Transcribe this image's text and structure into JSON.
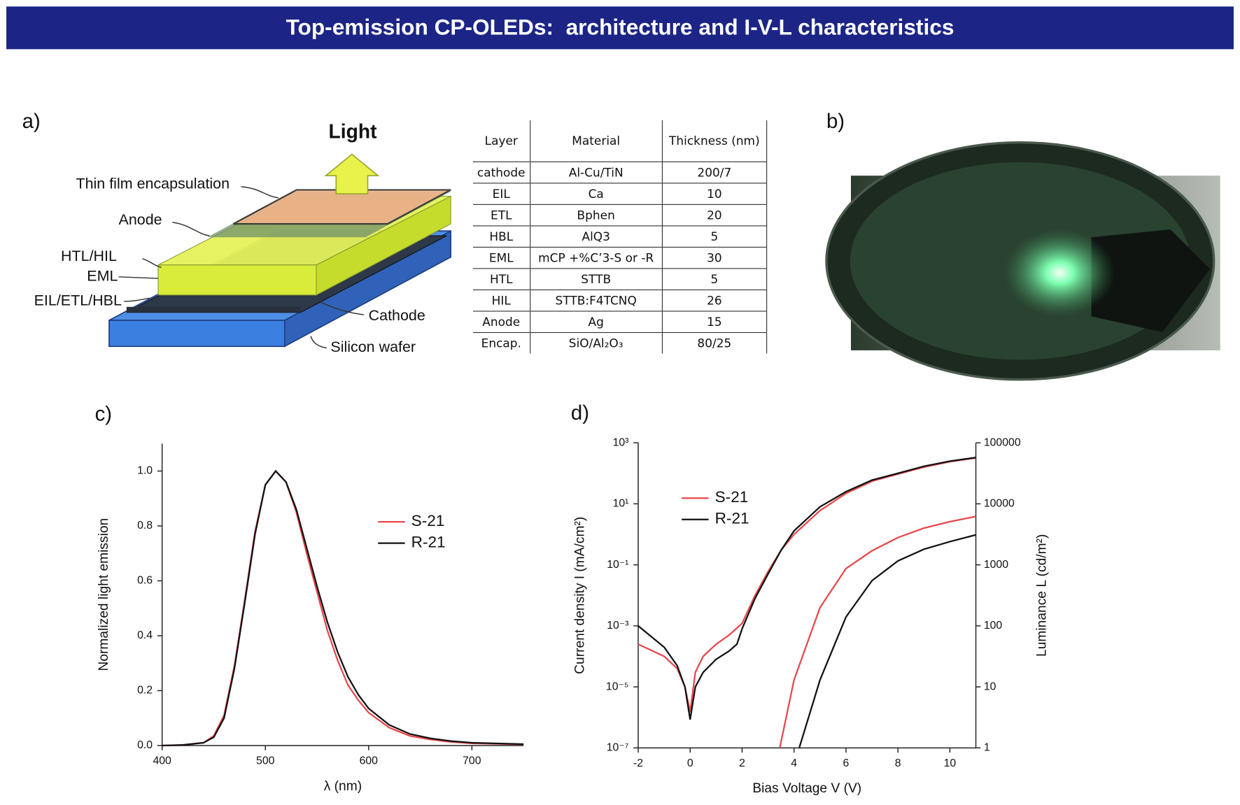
{
  "title": "Top-emission CP-OLEDs:  architecture and I-V-L characteristics",
  "panel_a": {
    "label": "a)",
    "light": "Light",
    "layers": [
      "Thin film encapsulation",
      "Anode",
      "HTL/HIL",
      "EML",
      "EIL/ETL/HBL",
      "Cathode",
      "Silicon wafer"
    ],
    "table": {
      "header": [
        "Layer",
        "Material",
        "Thickness (nm)"
      ],
      "rows": [
        [
          "cathode",
          "Al-Cu/TiN",
          "200/7"
        ],
        [
          "EIL",
          "Ca",
          "10"
        ],
        [
          "ETL",
          "Bphen",
          "20"
        ],
        [
          "HBL",
          "AlQ3",
          "5"
        ],
        [
          "EML",
          "mCP +%C’3-S or -R",
          "30"
        ],
        [
          "HTL",
          "STTB",
          "5"
        ],
        [
          "HIL",
          "STTB:F4TCNQ",
          "26"
        ],
        [
          "Anode",
          "Ag",
          "15"
        ],
        [
          "Encap.",
          "SiO/Al₂O₃",
          "80/25"
        ]
      ]
    }
  },
  "panel_b": {
    "label": "b)"
  },
  "chart_data": [
    {
      "type": "line",
      "panel": "c)",
      "xlabel": "λ (nm)",
      "ylabel": "Normalized light emission",
      "x": [
        400,
        420,
        440,
        450,
        460,
        470,
        480,
        490,
        500,
        510,
        520,
        530,
        540,
        550,
        560,
        570,
        580,
        590,
        600,
        620,
        640,
        660,
        680,
        700,
        750
      ],
      "series": [
        {
          "name": "S-21",
          "color": "#e8474b",
          "values": [
            0,
            0.002,
            0.01,
            0.035,
            0.11,
            0.29,
            0.53,
            0.78,
            0.95,
            1.0,
            0.96,
            0.85,
            0.7,
            0.56,
            0.42,
            0.31,
            0.22,
            0.165,
            0.12,
            0.065,
            0.035,
            0.022,
            0.013,
            0.008,
            0.004
          ]
        },
        {
          "name": "R-21",
          "color": "#111111",
          "values": [
            0,
            0.002,
            0.01,
            0.03,
            0.1,
            0.28,
            0.52,
            0.77,
            0.95,
            1.0,
            0.96,
            0.86,
            0.72,
            0.58,
            0.45,
            0.34,
            0.25,
            0.185,
            0.135,
            0.075,
            0.042,
            0.026,
            0.016,
            0.01,
            0.005
          ]
        }
      ],
      "xlim": [
        400,
        750
      ],
      "ylim": [
        0,
        1.1
      ],
      "xticks": [
        400,
        500,
        600,
        700
      ],
      "yticks": [
        {
          "value": 0,
          "label": "0.0"
        },
        {
          "value": 0.2,
          "label": "0.2"
        },
        {
          "value": 0.4,
          "label": "0.4"
        },
        {
          "value": 0.6,
          "label": "0.6"
        },
        {
          "value": 0.8,
          "label": "0.8"
        },
        {
          "value": 1.0,
          "label": "1.0"
        }
      ],
      "legend": "upper right"
    },
    {
      "type": "line",
      "panel": "d)",
      "xlabel": "Bias Voltage V (V)",
      "ylabel": "Current density I (mA/cm²)",
      "y2label": "Luminance L (cd/m²)",
      "series": [
        {
          "name": "S-21",
          "color": "#e8474b",
          "x": [
            -2,
            -1,
            -0.5,
            -0.2,
            0,
            0.2,
            0.5,
            1,
            1.5,
            2,
            2.5,
            3,
            3.5,
            4,
            5,
            6,
            7,
            8,
            9,
            10,
            11
          ],
          "values": [
            0.00025,
            0.0001,
            4e-05,
            1e-05,
            1.5e-06,
            3e-05,
            0.0001,
            0.00025,
            0.0005,
            0.0012,
            0.01,
            0.06,
            0.3,
            1,
            6,
            22,
            55,
            95,
            160,
            240,
            320
          ]
        },
        {
          "name": "R-21",
          "color": "#111111",
          "x": [
            -2,
            -1,
            -0.5,
            -0.2,
            0,
            0.2,
            0.5,
            1,
            1.5,
            1.8,
            2,
            2.5,
            3,
            3.5,
            4,
            5,
            6,
            7,
            8,
            9,
            10,
            11
          ],
          "values": [
            0.001,
            0.0002,
            5e-05,
            1e-05,
            8.5e-07,
            1e-05,
            3e-05,
            8e-05,
            0.00015,
            0.00025,
            0.0008,
            0.008,
            0.05,
            0.3,
            1.3,
            8,
            25,
            60,
            100,
            170,
            250,
            330
          ]
        },
        {
          "color": "#e8474b",
          "axis": "y2",
          "x": [
            3.45,
            4,
            5,
            6,
            7,
            8,
            9,
            10,
            11
          ],
          "values": [
            1,
            13,
            200,
            870,
            1700,
            2800,
            4000,
            5100,
            6200
          ]
        },
        {
          "color": "#111111",
          "axis": "y2",
          "x": [
            4.2,
            5,
            6,
            7,
            8,
            9,
            10,
            11
          ],
          "values": [
            1,
            13,
            140,
            550,
            1160,
            1800,
            2400,
            3100
          ]
        }
      ],
      "xlim": [
        -2,
        11
      ],
      "ylim": [
        1e-07,
        1000
      ],
      "ylog": true,
      "y2lim": [
        1,
        100000
      ],
      "y2log": true,
      "xticks": [
        -2,
        0,
        2,
        4,
        6,
        8,
        10
      ],
      "yticks": [
        {
          "value": 1e-07,
          "label": "10⁻⁷"
        },
        {
          "value": 1e-05,
          "label": "10⁻⁵"
        },
        {
          "value": 0.001,
          "label": "10⁻³"
        },
        {
          "value": 0.1,
          "label": "10⁻¹"
        },
        {
          "value": 10,
          "label": "10¹"
        },
        {
          "value": 1000,
          "label": "10³"
        }
      ],
      "y2ticks": [
        1,
        10,
        100,
        1000,
        10000,
        100000
      ],
      "legend": "upper left"
    }
  ]
}
